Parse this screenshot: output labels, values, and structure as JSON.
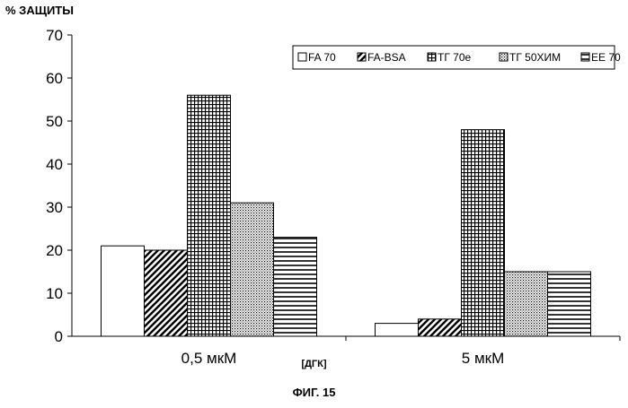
{
  "chart_data": {
    "type": "bar",
    "title": "",
    "ylabel": "% ЗАЩИТЫ",
    "xlabel": "[ДГК]",
    "caption": "ФИГ. 15",
    "categories": [
      "0,5 мкМ",
      "5 мкМ"
    ],
    "series": [
      {
        "name": "FA 70",
        "values": [
          21,
          3
        ],
        "pattern": "blank"
      },
      {
        "name": "FA-BSA",
        "values": [
          20,
          4
        ],
        "pattern": "diagonal-stripes"
      },
      {
        "name": "ТГ 70e",
        "values": [
          56,
          48
        ],
        "pattern": "grid"
      },
      {
        "name": "ТГ 50ХИМ",
        "values": [
          31,
          15
        ],
        "pattern": "dots"
      },
      {
        "name": "EE 70",
        "values": [
          23,
          15
        ],
        "pattern": "horizontal-stripes"
      }
    ],
    "ylim": [
      0,
      70
    ],
    "yticks": [
      0,
      10,
      20,
      30,
      40,
      50,
      60,
      70
    ],
    "grid": false,
    "legend_position": "top-right"
  }
}
